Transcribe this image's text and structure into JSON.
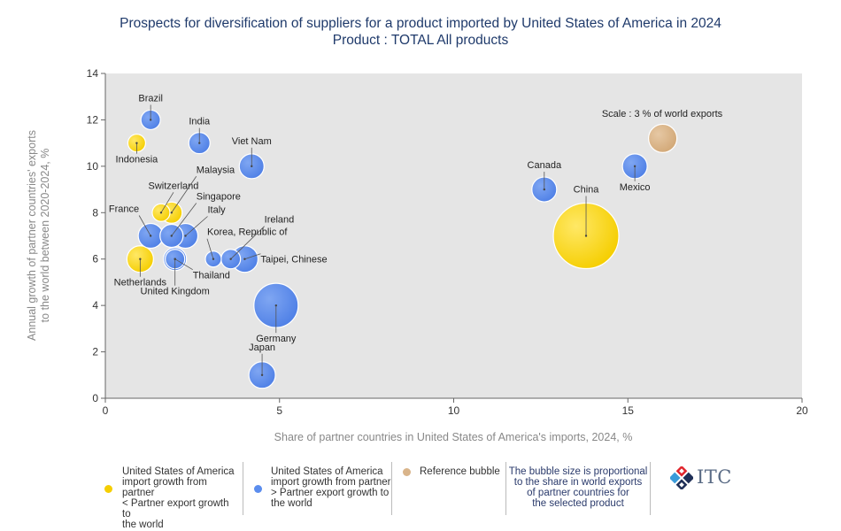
{
  "title_line1": "Prospects for diversification of suppliers for a product imported by United States of America in 2024",
  "title_line2": "Product : TOTAL All products",
  "colors": {
    "yellow": "#FFD800",
    "blue": "#5B8DEE",
    "reference": "#D9B48A",
    "plot_bg": "#E5E5E5"
  },
  "chart_data": {
    "type": "scatter",
    "xlabel": "Share of partner countries in United States of America's imports, 2024, %",
    "ylabel_line1": "Annual growth of partner countries' exports",
    "ylabel_line2": "to the world between 2020-2024, %",
    "xlim": [
      0,
      20
    ],
    "ylim": [
      0,
      14
    ],
    "xticks": [
      "0",
      "5",
      "10",
      "15",
      "20"
    ],
    "yticks": [
      "0",
      "2",
      "4",
      "6",
      "8",
      "10",
      "12",
      "14"
    ],
    "grid": false,
    "points": [
      {
        "name": "Brazil",
        "x": 1.3,
        "y": 12,
        "group": "blue",
        "r": 11
      },
      {
        "name": "India",
        "x": 2.7,
        "y": 11,
        "group": "blue",
        "r": 12
      },
      {
        "name": "Indonesia",
        "x": 0.9,
        "y": 11,
        "group": "yellow",
        "r": 10
      },
      {
        "name": "Viet Nam",
        "x": 4.2,
        "y": 10,
        "group": "blue",
        "r": 14
      },
      {
        "name": "Switzerland",
        "x": 1.6,
        "y": 8,
        "group": "yellow",
        "r": 10
      },
      {
        "name": "Malaysia",
        "x": 1.9,
        "y": 8,
        "group": "yellow",
        "r": 12
      },
      {
        "name": "France",
        "x": 1.3,
        "y": 7,
        "group": "blue",
        "r": 14
      },
      {
        "name": "Singapore",
        "x": 1.9,
        "y": 7,
        "group": "blue",
        "r": 13
      },
      {
        "name": "Italy",
        "x": 2.3,
        "y": 7,
        "group": "blue",
        "r": 14
      },
      {
        "name": "Netherlands",
        "x": 1.0,
        "y": 6,
        "group": "yellow",
        "r": 15
      },
      {
        "name": "United Kingdom",
        "x": 2.0,
        "y": 6,
        "group": "blue",
        "r": 13
      },
      {
        "name": "Thailand",
        "x": 2.0,
        "y": 6,
        "group": "blue",
        "r": 11
      },
      {
        "name": "Korea, Republic of",
        "x": 3.1,
        "y": 6,
        "group": "blue",
        "r": 9
      },
      {
        "name": "Ireland",
        "x": 3.6,
        "y": 6,
        "group": "blue",
        "r": 11
      },
      {
        "name": "Taipei, Chinese",
        "x": 4.0,
        "y": 6,
        "group": "blue",
        "r": 15
      },
      {
        "name": "Germany",
        "x": 4.9,
        "y": 4,
        "group": "blue",
        "r": 25
      },
      {
        "name": "Japan",
        "x": 4.5,
        "y": 1,
        "group": "blue",
        "r": 15
      },
      {
        "name": "Canada",
        "x": 12.6,
        "y": 9,
        "group": "blue",
        "r": 14
      },
      {
        "name": "China",
        "x": 13.8,
        "y": 7,
        "group": "yellow",
        "r": 37
      },
      {
        "name": "Mexico",
        "x": 15.2,
        "y": 10,
        "group": "blue",
        "r": 14
      },
      {
        "name": "",
        "x": 16.0,
        "y": 11.2,
        "group": "reference",
        "r": 16
      }
    ],
    "annotations": [
      {
        "text": "Scale : 3 % of world exports"
      }
    ]
  },
  "legend": {
    "item1": [
      "United States of America",
      "import growth from partner",
      "< Partner export growth to",
      "the world"
    ],
    "item2": [
      "United States of America",
      "import growth from partner",
      "> Partner export growth to",
      "the world"
    ],
    "item3": "Reference bubble",
    "item4": [
      "The bubble size is proportional",
      "to the share in world exports",
      "of partner countries for",
      "the selected product"
    ]
  },
  "logo_text": "ITC"
}
